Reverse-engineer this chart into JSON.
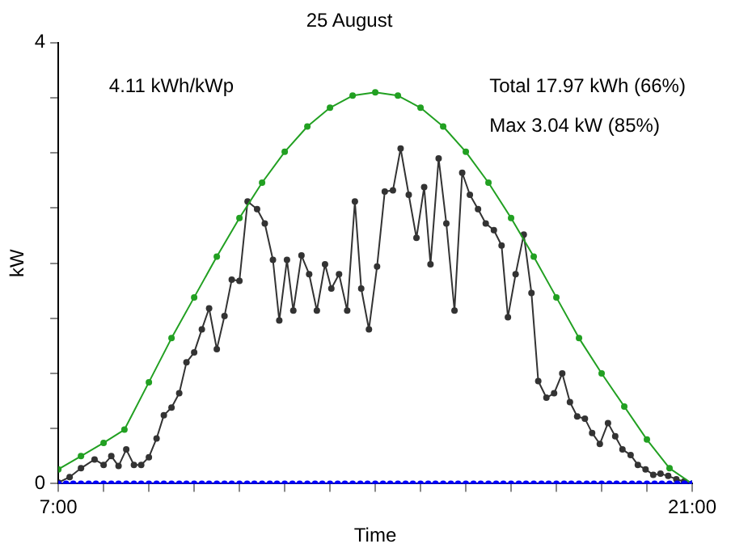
{
  "chart_data": {
    "type": "line",
    "title": "25 August",
    "xlabel": "Time",
    "ylabel": "kW",
    "annotations": [
      "4.11 kWh/kWp",
      "Total 17.97 kWh (66%)",
      "Max 3.04 kW (85%)"
    ],
    "marker": "circle",
    "line_style": "solid",
    "xlim": [
      7,
      21
    ],
    "xticks": [
      {
        "value": 7,
        "label": "7:00"
      },
      {
        "value": 8,
        "label": null
      },
      {
        "value": 9,
        "label": null
      },
      {
        "value": 10,
        "label": null
      },
      {
        "value": 11,
        "label": null
      },
      {
        "value": 12,
        "label": null
      },
      {
        "value": 13,
        "label": null
      },
      {
        "value": 14,
        "label": null
      },
      {
        "value": 15,
        "label": null
      },
      {
        "value": 16,
        "label": null
      },
      {
        "value": 17,
        "label": null
      },
      {
        "value": 18,
        "label": null
      },
      {
        "value": 19,
        "label": null
      },
      {
        "value": 20,
        "label": null
      },
      {
        "value": 21,
        "label": "21:00"
      }
    ],
    "ylim": [
      0,
      4
    ],
    "yticks": [
      0,
      {
        "value": 0.5,
        "label": null
      },
      {
        "value": 1,
        "label": null
      },
      {
        "value": 1.5,
        "label": null
      },
      {
        "value": 2,
        "label": null
      },
      {
        "value": 2.5,
        "label": null
      },
      {
        "value": 3,
        "label": null
      },
      {
        "value": 3.5,
        "label": null
      },
      4
    ],
    "series": [
      {
        "color": "#0000ff",
        "x": [
          7,
          7.17,
          7.33,
          7.5,
          7.67,
          7.83,
          8,
          8.17,
          8.33,
          8.5,
          8.67,
          8.83,
          9,
          9.17,
          9.33,
          9.5,
          9.67,
          9.83,
          10,
          10.17,
          10.33,
          10.5,
          10.67,
          10.83,
          11,
          11.17,
          11.33,
          11.5,
          11.67,
          11.83,
          12,
          12.17,
          12.33,
          12.5,
          12.67,
          12.83,
          13,
          13.17,
          13.33,
          13.5,
          13.67,
          13.83,
          14,
          14.17,
          14.33,
          14.5,
          14.67,
          14.83,
          15,
          15.17,
          15.33,
          15.5,
          15.67,
          15.83,
          16,
          16.17,
          16.33,
          16.5,
          16.67,
          16.83,
          17,
          17.17,
          17.33,
          17.5,
          17.67,
          17.83,
          18,
          18.17,
          18.33,
          18.5,
          18.67,
          18.83,
          19,
          19.17,
          19.33,
          19.5,
          19.67,
          19.83,
          20,
          20.17,
          20.33,
          20.5,
          20.67,
          20.83,
          21
        ],
        "values": [
          0,
          0,
          0,
          0,
          0,
          0,
          0,
          0,
          0,
          0,
          0,
          0,
          0,
          0,
          0,
          0,
          0,
          0,
          0,
          0,
          0,
          0,
          0,
          0,
          0,
          0,
          0,
          0,
          0,
          0,
          0,
          0,
          0,
          0,
          0,
          0,
          0,
          0,
          0,
          0,
          0,
          0,
          0,
          0,
          0,
          0,
          0,
          0,
          0,
          0,
          0,
          0,
          0,
          0,
          0,
          0,
          0,
          0,
          0,
          0,
          0,
          0,
          0,
          0,
          0,
          0,
          0,
          0,
          0,
          0,
          0,
          0,
          0,
          0,
          0,
          0,
          0,
          0,
          0,
          0,
          0,
          0,
          0,
          0,
          0
        ]
      },
      {
        "color": "#22a022",
        "x": [
          7,
          7.5,
          8,
          8.46,
          9,
          9.5,
          10,
          10.5,
          11,
          11.5,
          12,
          12.5,
          13,
          13.5,
          14,
          14.5,
          15,
          15.5,
          16,
          16.5,
          17,
          17.5,
          18,
          18.5,
          19,
          19.5,
          20,
          20.5,
          21
        ],
        "values": [
          0.13,
          0.25,
          0.37,
          0.49,
          0.92,
          1.32,
          1.69,
          2.06,
          2.41,
          2.73,
          3.01,
          3.24,
          3.41,
          3.52,
          3.55,
          3.52,
          3.41,
          3.24,
          3.01,
          2.73,
          2.41,
          2.06,
          1.69,
          1.32,
          1.0,
          0.7,
          0.4,
          0.14,
          0
        ]
      },
      {
        "color": "#333333",
        "x": [
          7,
          7.25,
          7.5,
          7.8,
          8,
          8.17,
          8.33,
          8.5,
          8.67,
          8.83,
          9,
          9.17,
          9.33,
          9.5,
          9.67,
          9.83,
          10,
          10.17,
          10.33,
          10.5,
          10.67,
          10.83,
          11,
          11.18,
          11.39,
          11.56,
          11.74,
          11.88,
          12.05,
          12.19,
          12.37,
          12.54,
          12.71,
          12.89,
          13.03,
          13.2,
          13.38,
          13.55,
          13.69,
          13.86,
          14.04,
          14.21,
          14.39,
          14.56,
          14.74,
          14.91,
          15.08,
          15.22,
          15.4,
          15.57,
          15.75,
          15.92,
          16.09,
          16.27,
          16.44,
          16.62,
          16.79,
          16.93,
          17.1,
          17.28,
          17.45,
          17.6,
          17.78,
          17.95,
          18.13,
          18.3,
          18.46,
          18.63,
          18.79,
          18.96,
          19.14,
          19.3,
          19.46,
          19.64,
          19.8,
          19.97,
          20.14,
          20.3,
          20.47,
          20.65,
          20.82,
          21
        ],
        "values": [
          0.01,
          0.06,
          0.14,
          0.22,
          0.17,
          0.25,
          0.16,
          0.31,
          0.17,
          0.17,
          0.24,
          0.41,
          0.62,
          0.69,
          0.82,
          1.1,
          1.19,
          1.4,
          1.59,
          1.22,
          1.52,
          1.85,
          1.84,
          2.56,
          2.49,
          2.36,
          2.03,
          1.48,
          2.03,
          1.57,
          2.07,
          1.9,
          1.57,
          1.99,
          1.77,
          1.9,
          1.57,
          2.56,
          1.77,
          1.4,
          1.97,
          2.65,
          2.66,
          3.04,
          2.62,
          2.23,
          2.69,
          1.99,
          2.95,
          2.36,
          1.57,
          2.82,
          2.62,
          2.49,
          2.36,
          2.3,
          2.16,
          1.51,
          1.9,
          2.26,
          1.73,
          0.93,
          0.78,
          0.82,
          1.0,
          0.74,
          0.61,
          0.59,
          0.46,
          0.36,
          0.55,
          0.43,
          0.31,
          0.26,
          0.17,
          0.13,
          0.08,
          0.09,
          0.07,
          0.04,
          0.02,
          0
        ]
      }
    ]
  }
}
